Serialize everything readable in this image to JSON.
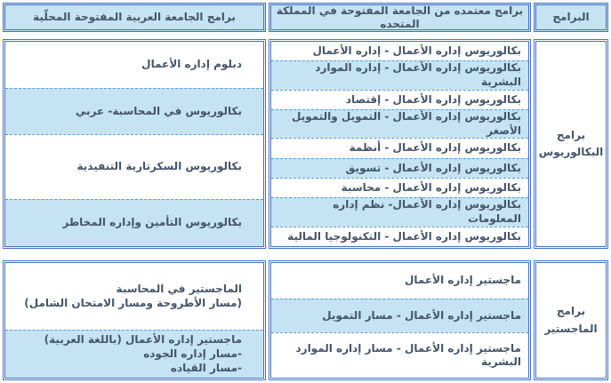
{
  "colors": {
    "border_blue": "#4472C4",
    "row_fill_blue": "#C5E3F3",
    "dashed_separator": "#5B9BD5",
    "text": "#44546A"
  },
  "header": {
    "programs_label": "البرامج",
    "uk_label": "برامج معتمده من الجامعة المفتوحة في المملكة المتحده",
    "local_label": "برامج الجامعة العربية المفتوحة المحلّية"
  },
  "bachelor": {
    "category_label": "برامج البكالوريوس",
    "uk_programs": [
      "بكالوريوس إداره الأعمال - إداره الأعمال",
      "بكالوريوس إداره الأعمال - إداره الموارد البشرية",
      "بكالوريوس إداره الأعمال - إقتصاد",
      "بكالوريوس إداره الأعمال - التمويل والتمويل الأصغر",
      "بكالوريوس إداره الأعمال - أنظمة",
      "بكالوريوس إداره الأعمال - تسويق",
      "بكالوريوس إداره الأعمال - محاسبة",
      "بكالوريوس إداره الأعمال- نظم إداره المعلومات",
      "بكالوريوس إداره الأعمال - التكنولوجيا المالية"
    ],
    "local_programs": [
      "دبلوم إداره الأعمال",
      "بكالوريوس في المحاسبة- عربي",
      "بكالوريوس السكرتارية التنفيذية",
      "بكالوريوس التأمين وإداره المخاطر"
    ]
  },
  "masters": {
    "category_label": "برامج الماجستير",
    "uk_programs": [
      "ماجستير إداره الأعمال",
      "ماجستير إداره الأعمال - مسار التمويل",
      "ماجستير إداره الأعمال - مسار إداره الموارد البشرية"
    ],
    "local_programs": [
      {
        "line1": "الماجستير في المحاسبة",
        "line2": "(مسار الأطروحة ومسار الامتحان الشامل)"
      },
      {
        "line1": "ماجستير إداره الأعمال (باللغة العربية)",
        "line2": "-مسار إداره الجوده",
        "line3": "-مسار القياده"
      }
    ]
  }
}
